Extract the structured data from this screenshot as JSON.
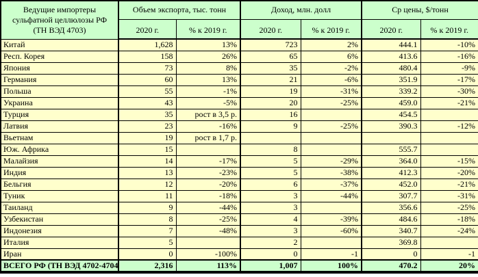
{
  "colors": {
    "header_bg": "#ccffcc",
    "data_row_bg": "#ffffcc",
    "total_row_bg": "#ccffcc",
    "border": "#000000",
    "text": "#000000"
  },
  "chart_data": {
    "type": "table",
    "title": "Ведущие импортеры\nсульфатной целлюлозы РФ\n(ТН ВЭД 4703)",
    "column_groups": [
      "Объем экспорта, тыс. тонн",
      "Доход, млн. долл",
      "Ср цены, $/тонн"
    ],
    "subheaders": [
      "2020 г.",
      "% к 2019 г."
    ],
    "rows": [
      {
        "country": "Китай",
        "values": [
          "1,628",
          "13%",
          "723",
          "2%",
          "444.1",
          "-10%"
        ]
      },
      {
        "country": "Респ. Корея",
        "values": [
          "158",
          "26%",
          "65",
          "6%",
          "413.6",
          "-16%"
        ]
      },
      {
        "country": "Япония",
        "values": [
          "73",
          "8%",
          "35",
          "-2%",
          "480.4",
          "-9%"
        ]
      },
      {
        "country": "Германия",
        "values": [
          "60",
          "13%",
          "21",
          "-6%",
          "351.9",
          "-17%"
        ]
      },
      {
        "country": "Польша",
        "values": [
          "55",
          "-1%",
          "19",
          "-31%",
          "339.2",
          "-30%"
        ]
      },
      {
        "country": "Украина",
        "values": [
          "43",
          "-5%",
          "20",
          "-25%",
          "459.0",
          "-21%"
        ]
      },
      {
        "country": "Турция",
        "values": [
          "35",
          "рост в 3,5 р.",
          "16",
          "",
          "454.5",
          ""
        ]
      },
      {
        "country": "Латвия",
        "values": [
          "23",
          "-16%",
          "9",
          "-25%",
          "390.3",
          "-12%"
        ]
      },
      {
        "country": "Вьетнам",
        "values": [
          "19",
          "рост в 1,7 р.",
          "",
          "",
          "",
          ""
        ]
      },
      {
        "country": "Юж. Африка",
        "values": [
          "15",
          "",
          "8",
          "",
          "555.7",
          ""
        ]
      },
      {
        "country": "Малайзия",
        "values": [
          "14",
          "-17%",
          "5",
          "-29%",
          "364.0",
          "-15%"
        ]
      },
      {
        "country": "Индия",
        "values": [
          "13",
          "-23%",
          "5",
          "-38%",
          "412.3",
          "-20%"
        ]
      },
      {
        "country": "Бельгия",
        "values": [
          "12",
          "-20%",
          "6",
          "-37%",
          "452.0",
          "-21%"
        ]
      },
      {
        "country": "Туник",
        "values": [
          "11",
          "-18%",
          "3",
          "-44%",
          "307.7",
          "-31%"
        ]
      },
      {
        "country": "Таиланд",
        "values": [
          "9",
          "-44%",
          "3",
          "",
          "356.6",
          "-25%"
        ]
      },
      {
        "country": "Узбекистан",
        "values": [
          "8",
          "-25%",
          "4",
          "-39%",
          "484.6",
          "-18%"
        ]
      },
      {
        "country": "Индонезия",
        "values": [
          "7",
          "-48%",
          "3",
          "-60%",
          "340.7",
          "-24%"
        ]
      },
      {
        "country": "Италия",
        "values": [
          "5",
          "",
          "2",
          "",
          "369.8",
          ""
        ]
      },
      {
        "country": "Иран",
        "values": [
          "0",
          "-100%",
          "0",
          "-1",
          "0",
          "-1"
        ]
      }
    ],
    "total": {
      "label": "ВСЕГО РФ (ТН ВЭД 4702-4704",
      "values": [
        "2,316",
        "113%",
        "1,007",
        "100%",
        "470.2",
        "20%"
      ]
    }
  }
}
